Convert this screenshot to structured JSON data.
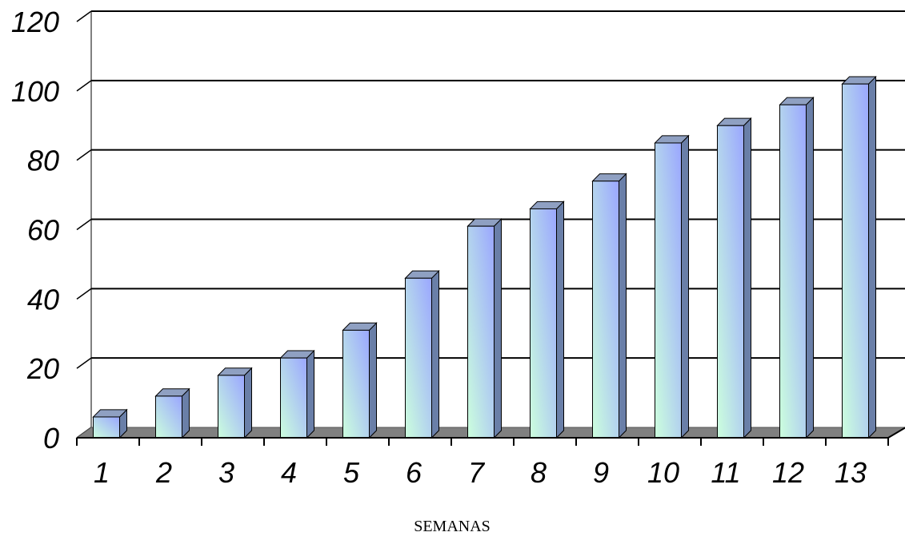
{
  "chart_data": {
    "type": "bar",
    "style": "3d-column",
    "title": "",
    "xlabel": "SEMANAS",
    "ylabel": "",
    "categories": [
      "1",
      "2",
      "3",
      "4",
      "5",
      "6",
      "7",
      "8",
      "9",
      "10",
      "11",
      "12",
      "13"
    ],
    "values": [
      6,
      12,
      18,
      23,
      31,
      46,
      61,
      66,
      74,
      85,
      90,
      96,
      102
    ],
    "ylim": [
      0,
      120
    ],
    "yticks": [
      "0",
      "20",
      "40",
      "60",
      "80",
      "100",
      "120"
    ],
    "grid": true,
    "legend": "none",
    "colors": {
      "bar_top": "#9aa6ff",
      "bar_bottom": "#ccffdd",
      "bar_side": "#6a7fa8",
      "bar_cap": "#8fa0c2",
      "floor": "#808080"
    }
  }
}
